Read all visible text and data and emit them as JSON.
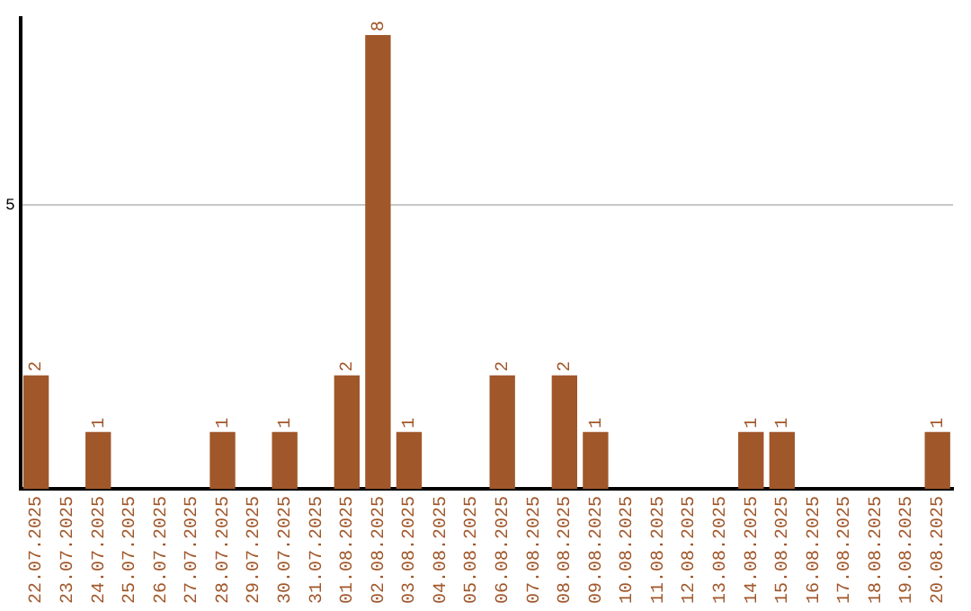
{
  "chart_data": {
    "type": "bar",
    "categories": [
      "22.07.2025",
      "23.07.2025",
      "24.07.2025",
      "25.07.2025",
      "26.07.2025",
      "27.07.2025",
      "28.07.2025",
      "29.07.2025",
      "30.07.2025",
      "31.07.2025",
      "01.08.2025",
      "02.08.2025",
      "03.08.2025",
      "04.08.2025",
      "05.08.2025",
      "06.08.2025",
      "07.08.2025",
      "08.08.2025",
      "09.08.2025",
      "10.08.2025",
      "11.08.2025",
      "12.08.2025",
      "13.08.2025",
      "14.08.2025",
      "15.08.2025",
      "16.08.2025",
      "17.08.2025",
      "18.08.2025",
      "19.08.2025",
      "20.08.2025"
    ],
    "values": [
      2,
      0,
      1,
      0,
      0,
      0,
      1,
      0,
      1,
      0,
      2,
      8,
      1,
      0,
      0,
      2,
      0,
      2,
      1,
      0,
      0,
      0,
      0,
      1,
      1,
      0,
      0,
      0,
      0,
      1
    ],
    "value_labels": [
      "2",
      null,
      "1",
      null,
      null,
      null,
      "1",
      null,
      "1",
      null,
      "2",
      "8",
      "1",
      null,
      null,
      "2",
      null,
      "2",
      "1",
      null,
      null,
      null,
      null,
      "1",
      "1",
      null,
      null,
      null,
      null,
      "1"
    ],
    "color": "#a0572a",
    "ylim": [
      0,
      8.3
    ],
    "yticks": [
      5
    ],
    "grid": "y"
  }
}
